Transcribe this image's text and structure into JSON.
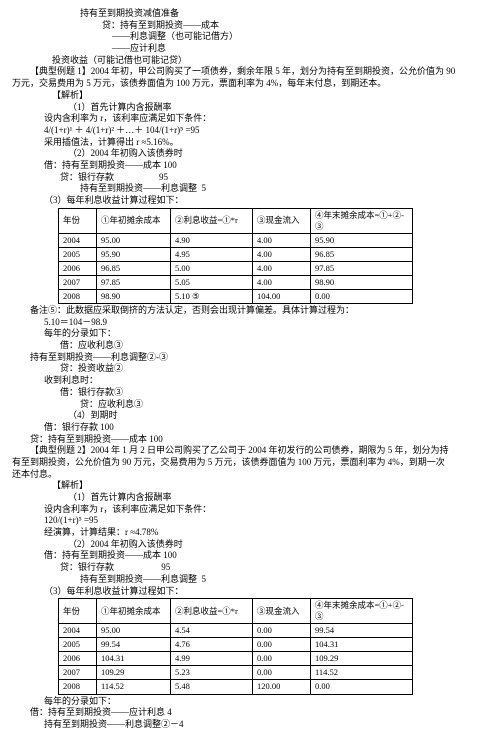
{
  "lines": {
    "l1": "持有至到期投资减值准备",
    "l2": "贷：持有至到期投资——成本",
    "l3": "——利息调整（也可能记借方）",
    "l4": "——应计利息",
    "l5": "投资收益（可能记借也可能记贷）",
    "l6": "【典型例题 1】2004 年初，甲公司购买了一项债券，剩余年限 5 年，划分为持有至到期投资，公允价值为 90",
    "l7": "万元，交易费用为 5 万元，该债券面值为 100 万元，票面利率为 4%，每年末付息，到期还本。",
    "l8": "【解析】",
    "l9": "（1）首先计算内含报酬率",
    "l10": "设内含利率为 r，该利率应满足如下条件：",
    "l11": "4/(1+r)¹ ＋ 4/(1+r)² ＋…＋ 104/(1+r)⁵ =95",
    "l12": "采用插值法，计算得出 r ≈5.16%。",
    "l13": "（2）2004 年初购入该债券时",
    "l14": "借：持有至到期投资——成本 100",
    "l15": "贷：银行存款                    95",
    "l16": "持有至到期投资——利息调整  5",
    "l17": "（3）每年利息收益计算过程如下：",
    "l18": "备注⑤：此数据应采取倒挤的方法认定，否则会出现计算偏差。具体计算过程为：",
    "l19": "5.10＝104－98.9",
    "l20": "每年的分录如下：",
    "l21": "借：应收利息③",
    "l22": "持有至到期投资——利息调整②-③",
    "l23": "贷：投资收益②",
    "l24": "收到利息时：",
    "l25": "借：银行存款③",
    "l26": "贷：应收利息③",
    "l27": "（4）到期时",
    "l28": "借：银行存款 100",
    "l29": "贷：持有至到期投资——成本 100",
    "l30": "【典型例题 2】2004 年 1 月 2 日甲公司购买了乙公司于 2004 年初发行的公司债券，期限为 5 年，划分为持",
    "l31": "有至到期投资，公允价值为 90 万元，交易费用为 5 万元，该债券面值为 100 万元，票面利率为 4%，到期一次",
    "l32": "还本付息。",
    "l33": "【解析】",
    "l34": "（1）首先计算内含报酬率",
    "l35": "设内含利率为 r，该利率应满足如下条件：",
    "l36": "120/(1+r)⁵ =95",
    "l37": "经演算，计算结果：r ≈4.78%",
    "l38": "（2）2004 年初购入该债券时",
    "l39": "借：持有至到期投资——成本 100",
    "l40": "贷：银行存款                     95",
    "l41": "持有至到期投资——利息调整  5",
    "l42": "（3）每年利息收益计算过程如下：",
    "l43": "每年的分录如下：",
    "l44": "借：持有至到期投资——应计利息 4",
    "l45": "持有至到期投资——利息调整②－4"
  },
  "table1": {
    "headers": [
      "年份",
      "①年初摊余成本",
      "②利息收益=①*r",
      "③现金流入",
      "④年末摊余成本=①+②-③"
    ],
    "rows": [
      [
        "2004",
        "95.00",
        "4.90",
        "4.00",
        "95.90"
      ],
      [
        "2005",
        "95.90",
        "4.95",
        "4.00",
        "96.85"
      ],
      [
        "2006",
        "96.85",
        "5.00",
        "4.00",
        "97.85"
      ],
      [
        "2007",
        "97.85",
        "5.05",
        "4.00",
        "98.90"
      ],
      [
        "2008",
        "98.90",
        "5.10 ⑤",
        "104.00",
        "0.00"
      ]
    ]
  },
  "table2": {
    "headers": [
      "年份",
      "①年初摊余成本",
      "②利息收益=①*r",
      "③现金流入",
      "④年末摊余成本=①+②-③"
    ],
    "rows": [
      [
        "2004",
        "95.00",
        "4.54",
        "0.00",
        "99.54"
      ],
      [
        "2005",
        "99.54",
        "4.76",
        "0.00",
        "104.31"
      ],
      [
        "2006",
        "104.31",
        "4.99",
        "0.00",
        "109.29"
      ],
      [
        "2007",
        "109.29",
        "5.23",
        "0.00",
        "114.52"
      ],
      [
        "2008",
        "114.52",
        "5.48",
        "120.00",
        "0.00"
      ]
    ]
  }
}
